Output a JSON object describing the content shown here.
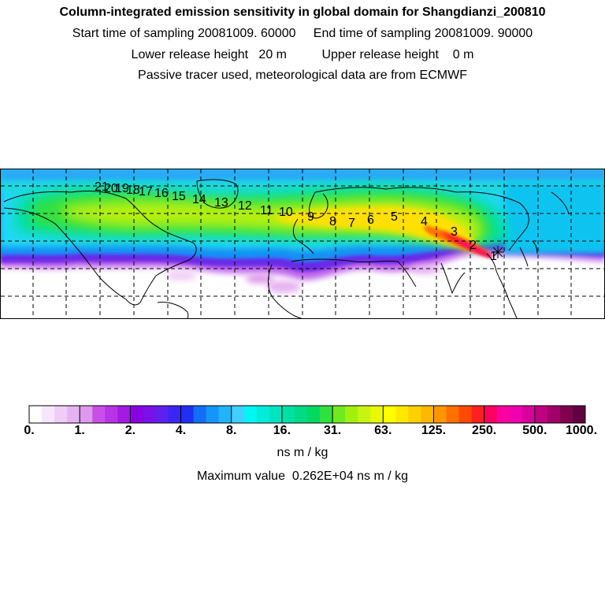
{
  "header": {
    "title": "Column-integrated emission sensitivity in global domain for Shangdianzi_200810",
    "sampling": "Start time of sampling 20081009. 60000     End time of sampling 20081009. 90000",
    "release": "Lower release height   20 m          Upper release height    0 m",
    "tracer": "Passive tracer used, meteorological data are from ECMWF"
  },
  "map": {
    "station_marker": "asterisk-icon",
    "trajectory_labels": [
      "1",
      "2",
      "3",
      "4",
      "5",
      "6",
      "7",
      "8",
      "9",
      "10",
      "11",
      "12",
      "13",
      "14",
      "15",
      "16",
      "17",
      "18",
      "19",
      "20",
      "21"
    ]
  },
  "colorbar": {
    "colors": [
      "#ffffff",
      "#f7e6fb",
      "#efcdf6",
      "#e6b3f1",
      "#de99ec",
      "#c94fe9",
      "#b733e6",
      "#a31ae3",
      "#8a00e0",
      "#7a10ea",
      "#5e20ee",
      "#3a26f0",
      "#2030f2",
      "#1070f5",
      "#1595f8",
      "#20b5fb",
      "#3fd0fd",
      "#00f5f5",
      "#00eddc",
      "#00e5c0",
      "#00e0a5",
      "#00da85",
      "#00d860",
      "#30e040",
      "#70ea20",
      "#a0f010",
      "#c8f510",
      "#e6fa05",
      "#ffff00",
      "#ffe800",
      "#ffd000",
      "#ffb800",
      "#ff9500",
      "#ff7000",
      "#ff4a00",
      "#ff2020",
      "#ff0060",
      "#ff00a0",
      "#f000b0",
      "#d80098",
      "#c00080",
      "#a00068",
      "#800050",
      "#600040"
    ],
    "major_every": 4,
    "tick_labels": [
      "0.",
      "1.",
      "2.",
      "4.",
      "8.",
      "16.",
      "31.",
      "63.",
      "125.",
      "250.",
      "500.",
      "1000."
    ]
  },
  "units": "ns m / kg",
  "max_value": "Maximum value  0.262E+04 ns m / kg"
}
